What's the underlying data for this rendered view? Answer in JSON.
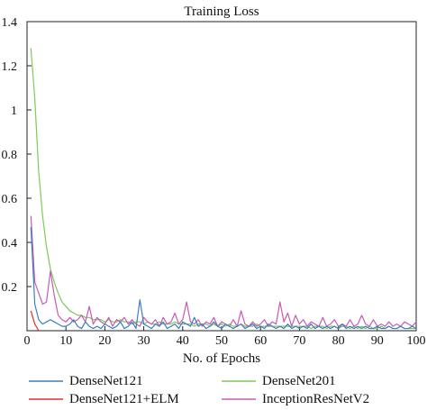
{
  "chart_data": {
    "type": "line",
    "title": "Training Loss",
    "xlabel": "No. of Epochs",
    "ylabel": "",
    "xlim": [
      0,
      100
    ],
    "ylim": [
      0,
      1.4
    ],
    "x_ticks": [
      0,
      10,
      20,
      30,
      40,
      50,
      60,
      70,
      80,
      90,
      100
    ],
    "y_ticks": [
      0.2,
      0.4,
      0.6,
      0.8,
      1,
      1.2,
      1.4
    ],
    "grid": false,
    "legend_position": "bottom",
    "series": [
      {
        "name": "DenseNet121",
        "color": "#3a7fbf",
        "x": [
          1,
          2,
          3,
          4,
          5,
          6,
          7,
          8,
          9,
          10,
          11,
          12,
          13,
          14,
          15,
          16,
          17,
          18,
          19,
          20,
          21,
          22,
          23,
          24,
          25,
          26,
          27,
          28,
          29,
          30,
          31,
          32,
          33,
          34,
          35,
          36,
          37,
          38,
          39,
          40,
          41,
          42,
          43,
          44,
          45,
          46,
          47,
          48,
          49,
          50,
          51,
          52,
          53,
          54,
          55,
          56,
          57,
          58,
          59,
          60,
          61,
          62,
          63,
          64,
          65,
          66,
          67,
          68,
          69,
          70,
          71,
          72,
          73,
          74,
          75,
          76,
          77,
          78,
          79,
          80,
          81,
          82,
          83,
          84,
          85,
          86,
          87,
          88,
          89,
          90,
          91,
          92,
          93,
          94,
          95,
          96,
          97,
          98,
          99,
          100
        ],
        "values": [
          0.47,
          0.12,
          0.05,
          0.03,
          0.04,
          0.05,
          0.04,
          0.03,
          0.02,
          0.02,
          0.03,
          0.05,
          0.02,
          0.01,
          0.04,
          0.02,
          0.01,
          0.02,
          0.01,
          0.03,
          0.02,
          0.01,
          0.02,
          0.04,
          0.01,
          0.02,
          0.04,
          0.01,
          0.14,
          0.03,
          0.02,
          0.01,
          0.03,
          0.02,
          0.04,
          0.01,
          0.02,
          0.03,
          0.01,
          0.04,
          0.03,
          0.02,
          0.06,
          0.02,
          0.03,
          0.01,
          0.02,
          0.04,
          0.02,
          0.01,
          0.03,
          0.02,
          0.01,
          0.02,
          0.03,
          0.01,
          0.02,
          0.03,
          0.01,
          0.02,
          0.01,
          0.03,
          0.02,
          0.01,
          0.02,
          0.01,
          0.03,
          0.01,
          0.02,
          0.01,
          0.02,
          0.01,
          0.03,
          0.01,
          0.02,
          0.01,
          0.02,
          0.01,
          0.02,
          0.01,
          0.03,
          0.01,
          0.02,
          0.01,
          0.02,
          0.01,
          0.02,
          0.01,
          0.01,
          0.02,
          0.01,
          0.01,
          0.02,
          0.01,
          0.01,
          0.02,
          0.01,
          0.01,
          0.02,
          0.01
        ]
      },
      {
        "name": "DenseNet201",
        "color": "#7ec95a",
        "x": [
          1,
          2,
          3,
          4,
          5,
          6,
          7,
          8,
          9,
          10,
          11,
          12,
          13,
          14,
          15,
          16,
          17,
          18,
          19,
          20,
          21,
          22,
          23,
          24,
          25,
          26,
          27,
          28,
          29,
          30,
          31,
          32,
          33,
          34,
          35,
          36,
          37,
          38,
          39,
          40,
          41,
          42,
          43,
          44,
          45,
          46,
          47,
          48,
          49,
          50,
          51,
          52,
          53,
          54,
          55,
          56,
          57,
          58,
          59,
          60,
          61,
          62,
          63,
          64,
          65,
          66,
          67,
          68,
          69,
          70,
          71,
          72,
          73,
          74,
          75,
          76,
          77,
          78,
          79,
          80,
          81,
          82,
          83,
          84,
          85,
          86,
          87,
          88,
          89,
          90,
          91,
          92,
          93,
          94,
          95,
          96,
          97,
          98,
          99,
          100
        ],
        "values": [
          1.28,
          1.05,
          0.72,
          0.52,
          0.38,
          0.28,
          0.22,
          0.17,
          0.13,
          0.11,
          0.09,
          0.08,
          0.07,
          0.07,
          0.06,
          0.06,
          0.05,
          0.05,
          0.05,
          0.04,
          0.05,
          0.04,
          0.04,
          0.05,
          0.04,
          0.04,
          0.03,
          0.04,
          0.04,
          0.03,
          0.04,
          0.03,
          0.03,
          0.04,
          0.03,
          0.03,
          0.03,
          0.04,
          0.03,
          0.03,
          0.03,
          0.03,
          0.02,
          0.03,
          0.03,
          0.03,
          0.02,
          0.03,
          0.02,
          0.03,
          0.02,
          0.03,
          0.02,
          0.02,
          0.03,
          0.02,
          0.02,
          0.02,
          0.03,
          0.02,
          0.02,
          0.02,
          0.02,
          0.02,
          0.02,
          0.02,
          0.02,
          0.02,
          0.02,
          0.02,
          0.02,
          0.02,
          0.01,
          0.02,
          0.02,
          0.02,
          0.01,
          0.02,
          0.02,
          0.01,
          0.02,
          0.02,
          0.01,
          0.02,
          0.01,
          0.02,
          0.01,
          0.02,
          0.01,
          0.01,
          0.02,
          0.01,
          0.02,
          0.01,
          0.01,
          0.02,
          0.01,
          0.01,
          0.01,
          0.01
        ]
      },
      {
        "name": "DenseNet121+ELM",
        "color": "#e0302a",
        "x": [
          1,
          2,
          3
        ],
        "values": [
          0.09,
          0.03,
          0.0
        ]
      },
      {
        "name": "InceptionResNetV2",
        "color": "#c85ab5",
        "x": [
          1,
          2,
          3,
          4,
          5,
          6,
          7,
          8,
          9,
          10,
          11,
          12,
          13,
          14,
          15,
          16,
          17,
          18,
          19,
          20,
          21,
          22,
          23,
          24,
          25,
          26,
          27,
          28,
          29,
          30,
          31,
          32,
          33,
          34,
          35,
          36,
          37,
          38,
          39,
          40,
          41,
          42,
          43,
          44,
          45,
          46,
          47,
          48,
          49,
          50,
          51,
          52,
          53,
          54,
          55,
          56,
          57,
          58,
          59,
          60,
          61,
          62,
          63,
          64,
          65,
          66,
          67,
          68,
          69,
          70,
          71,
          72,
          73,
          74,
          75,
          76,
          77,
          78,
          79,
          80,
          81,
          82,
          83,
          84,
          85,
          86,
          87,
          88,
          89,
          90,
          91,
          92,
          93,
          94,
          95,
          96,
          97,
          98,
          99,
          100
        ],
        "values": [
          0.52,
          0.22,
          0.17,
          0.12,
          0.13,
          0.27,
          0.16,
          0.07,
          0.05,
          0.04,
          0.06,
          0.04,
          0.05,
          0.07,
          0.04,
          0.11,
          0.03,
          0.06,
          0.04,
          0.03,
          0.06,
          0.02,
          0.05,
          0.04,
          0.06,
          0.03,
          0.05,
          0.03,
          0.02,
          0.06,
          0.04,
          0.03,
          0.05,
          0.02,
          0.06,
          0.03,
          0.04,
          0.08,
          0.03,
          0.05,
          0.13,
          0.04,
          0.03,
          0.05,
          0.02,
          0.04,
          0.03,
          0.06,
          0.02,
          0.04,
          0.03,
          0.02,
          0.05,
          0.02,
          0.09,
          0.03,
          0.02,
          0.04,
          0.02,
          0.03,
          0.05,
          0.02,
          0.04,
          0.03,
          0.13,
          0.04,
          0.08,
          0.02,
          0.07,
          0.03,
          0.05,
          0.02,
          0.04,
          0.03,
          0.02,
          0.06,
          0.02,
          0.03,
          0.05,
          0.02,
          0.03,
          0.02,
          0.05,
          0.02,
          0.03,
          0.07,
          0.03,
          0.02,
          0.05,
          0.02,
          0.03,
          0.02,
          0.04,
          0.02,
          0.03,
          0.02,
          0.04,
          0.03,
          0.02,
          0.04
        ]
      }
    ]
  }
}
